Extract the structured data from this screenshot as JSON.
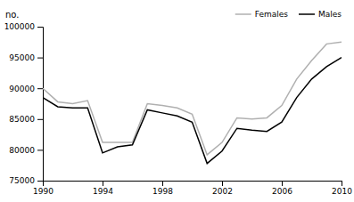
{
  "chart_data": {
    "type": "line",
    "ylabel": "no.",
    "x": [
      1990,
      1991,
      1992,
      1993,
      1994,
      1995,
      1996,
      1997,
      1998,
      1999,
      2000,
      2001,
      2002,
      2003,
      2004,
      2005,
      2006,
      2007,
      2008,
      2009,
      2010
    ],
    "series": [
      {
        "name": "Females",
        "color": "#b0b0b0",
        "values": [
          90000,
          87800,
          87500,
          88000,
          81200,
          81200,
          81200,
          87500,
          87200,
          86800,
          85800,
          79200,
          81200,
          85200,
          85000,
          85200,
          87200,
          91500,
          94500,
          97200,
          97500
        ]
      },
      {
        "name": "Males",
        "color": "#000000",
        "values": [
          88500,
          87000,
          86800,
          86800,
          79500,
          80500,
          80800,
          86500,
          86000,
          85500,
          84500,
          77800,
          79800,
          83500,
          83200,
          83000,
          84500,
          88500,
          91500,
          93500,
          95000
        ]
      }
    ],
    "xlim": [
      1990,
      2010
    ],
    "xticks": [
      1990,
      1994,
      1998,
      2002,
      2006,
      2010
    ],
    "ylim": [
      75000,
      100000
    ],
    "yticks": [
      75000,
      80000,
      85000,
      90000,
      95000,
      100000
    ],
    "legend": "upper right",
    "grid": false
  }
}
